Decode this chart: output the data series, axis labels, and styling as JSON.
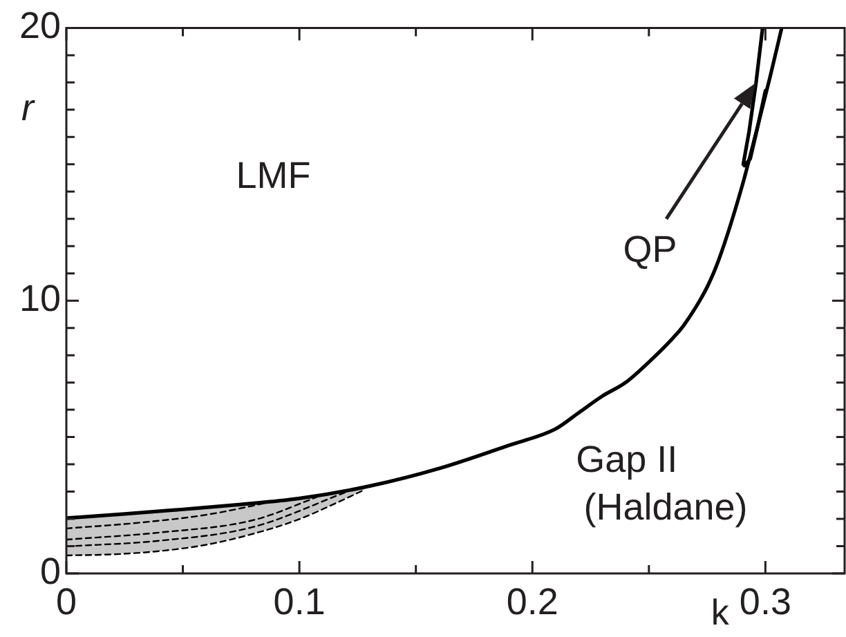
{
  "chart_data": {
    "type": "line",
    "xlabel": "k",
    "ylabel": "r",
    "xlim": [
      0,
      0.334
    ],
    "ylim": [
      0,
      20
    ],
    "xticks": [
      0,
      {
        "value": 0.05,
        "label": null
      },
      0.1,
      {
        "value": 0.15,
        "label": null
      },
      0.2,
      {
        "value": 0.25,
        "label": null
      },
      0.3
    ],
    "yticks": [
      0,
      {
        "value": 1,
        "label": null
      },
      {
        "value": 2,
        "label": null
      },
      {
        "value": 3,
        "label": null
      },
      {
        "value": 4,
        "label": null
      },
      {
        "value": 5,
        "label": null
      },
      {
        "value": 6,
        "label": null
      },
      {
        "value": 7,
        "label": null
      },
      {
        "value": 8,
        "label": null
      },
      {
        "value": 9,
        "label": null
      },
      10,
      {
        "value": 11,
        "label": null
      },
      {
        "value": 12,
        "label": null
      },
      {
        "value": 13,
        "label": null
      },
      {
        "value": 14,
        "label": null
      },
      {
        "value": 15,
        "label": null
      },
      {
        "value": 16,
        "label": null
      },
      {
        "value": 17,
        "label": null
      },
      {
        "value": 18,
        "label": null
      },
      {
        "value": 19,
        "label": null
      },
      20
    ],
    "grid": false,
    "legend": false,
    "marker": "none",
    "series": [
      {
        "color": "#000000",
        "line_style": "dashed",
        "x": [
          0,
          0.02,
          0.04,
          0.06,
          0.08,
          0.1,
          0.115,
          0.128
        ],
        "values": [
          0.66,
          0.7,
          0.82,
          1.05,
          1.45,
          1.99,
          2.55,
          3.07
        ],
        "lower": [
          0.66,
          0.7,
          0.82,
          1.05,
          1.45,
          1.99,
          2.55,
          3.07
        ],
        "upper": [
          2.03,
          2.15,
          2.28,
          2.42,
          2.58,
          2.75,
          2.95,
          3.13
        ]
      },
      {
        "color": "#000000",
        "line_style": "solid",
        "x": [
          0,
          0.025,
          0.05,
          0.075,
          0.1,
          0.13,
          0.16,
          0.19,
          0.21,
          0.22,
          0.23,
          0.24,
          0.25,
          0.26,
          0.265,
          0.275,
          0.28,
          0.29,
          0.297,
          0.302,
          0.307
        ],
        "values": [
          2.03,
          2.18,
          2.35,
          2.53,
          2.75,
          3.2,
          3.85,
          4.7,
          5.3,
          5.9,
          6.5,
          7.0,
          7.75,
          8.6,
          9.1,
          10.5,
          11.5,
          14.2,
          16.5,
          18.2,
          20
        ]
      },
      {
        "color": "#000000",
        "line_style": "solid",
        "x": [
          0.2988,
          0.296,
          0.293,
          0.2905,
          0.291,
          0.2935,
          0.2965,
          0.3
        ],
        "values": [
          20,
          18,
          16.2,
          15,
          14.95,
          15.2,
          16.3,
          17.7
        ]
      },
      {
        "color": "#000000",
        "line_style": "dashed",
        "x": [
          0,
          0.03,
          0.06,
          0.09
        ],
        "values": [
          1.65,
          1.85,
          2.15,
          2.66
        ]
      },
      {
        "color": "#000000",
        "line_style": "dashed",
        "x": [
          0,
          0.04,
          0.08,
          0.11
        ],
        "values": [
          1.24,
          1.5,
          1.95,
          2.88
        ]
      },
      {
        "color": "#000000",
        "line_style": "dashed",
        "x": [
          0,
          0.04,
          0.08,
          0.12
        ],
        "values": [
          0.99,
          1.2,
          1.7,
          2.98
        ]
      }
    ],
    "annotations": [
      "LMF",
      "QP",
      "Gap II",
      "(Haldane)"
    ]
  }
}
